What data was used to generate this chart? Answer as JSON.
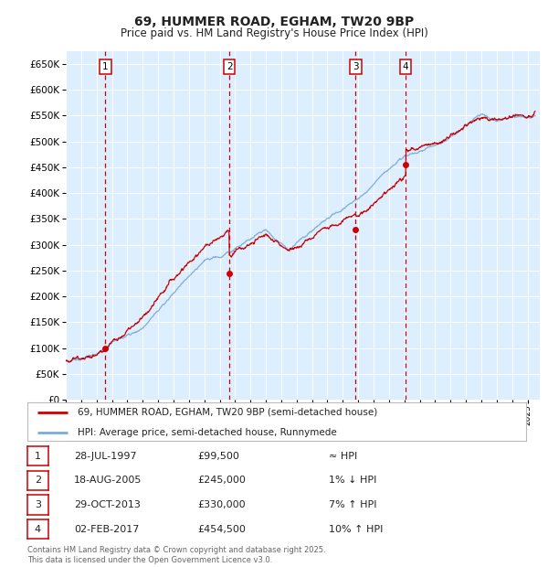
{
  "title": "69, HUMMER ROAD, EGHAM, TW20 9BP",
  "subtitle": "Price paid vs. HM Land Registry's House Price Index (HPI)",
  "ylim": [
    0,
    675000
  ],
  "yticks": [
    0,
    50000,
    100000,
    150000,
    200000,
    250000,
    300000,
    350000,
    400000,
    450000,
    500000,
    550000,
    600000,
    650000
  ],
  "xlim_start": 1995.0,
  "xlim_end": 2025.8,
  "background_color": "#ffffff",
  "plot_bg_color": "#ddeeff",
  "grid_color": "#ffffff",
  "sale_dates": [
    1997.57,
    2005.63,
    2013.83,
    2017.09
  ],
  "sale_prices": [
    99500,
    245000,
    330000,
    454500
  ],
  "sale_labels": [
    "1",
    "2",
    "3",
    "4"
  ],
  "legend_line_label": "69, HUMMER ROAD, EGHAM, TW20 9BP (semi-detached house)",
  "legend_hpi_label": "HPI: Average price, semi-detached house, Runnymede",
  "table_rows": [
    [
      "1",
      "28-JUL-1997",
      "£99,500",
      "≈ HPI"
    ],
    [
      "2",
      "18-AUG-2005",
      "£245,000",
      "1% ↓ HPI"
    ],
    [
      "3",
      "29-OCT-2013",
      "£330,000",
      "7% ↑ HPI"
    ],
    [
      "4",
      "02-FEB-2017",
      "£454,500",
      "10% ↑ HPI"
    ]
  ],
  "footer": "Contains HM Land Registry data © Crown copyright and database right 2025.\nThis data is licensed under the Open Government Licence v3.0.",
  "line_color": "#cc0000",
  "hpi_color": "#7aabdb",
  "marker_color": "#cc0000",
  "vline_color": "#cc0000",
  "box_color": "#cc0000"
}
